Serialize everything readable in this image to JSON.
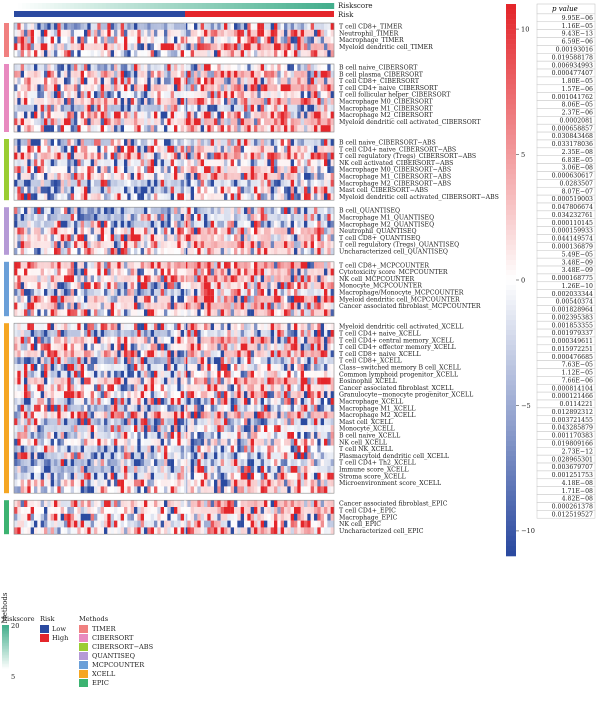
{
  "chart_data": {
    "type": "heatmap",
    "top_annotations": [
      "Riskscore",
      "Risk"
    ],
    "pvalue_header": "p value",
    "colorbar": {
      "ticks": [
        "10",
        "5",
        "0",
        "−5",
        "−10"
      ],
      "values": [
        10,
        5,
        0,
        -5,
        -10
      ],
      "range": [
        -11,
        11
      ]
    },
    "groups": [
      {
        "method": "TIMER",
        "color": "#f08080",
        "rows": [
          {
            "name": "T cell CD8+_TIMER",
            "p": "9.95E−06"
          },
          {
            "name": "Neutrophil_TIMER",
            "p": "1.16E−05"
          },
          {
            "name": "Macrophage_TIMER",
            "p": "9.43E−13"
          },
          {
            "name": "Myeloid dendritic cell_TIMER",
            "p": "6.59E−06"
          },
          {
            "name": "",
            "p": "0.00193016"
          }
        ]
      },
      {
        "method": "CIBERSORT",
        "color": "#e88ac0",
        "rows": [
          {
            "name": "B cell naive_CIBERSORT",
            "p": "0.019588178"
          },
          {
            "name": "B cell plasma_CIBERSORT",
            "p": "0.006934993"
          },
          {
            "name": "T cell CD8+_CIBERSORT",
            "p": "0.000477407"
          },
          {
            "name": "T cell CD4+ naive_CIBERSORT",
            "p": "1.80E−05"
          },
          {
            "name": "T cell follicular helper_CIBERSORT",
            "p": "1.57E−06"
          },
          {
            "name": "Macrophage M0_CIBERSORT",
            "p": "0.001041762"
          },
          {
            "name": "Macrophage M1_CIBERSORT",
            "p": "8.06E−05"
          },
          {
            "name": "Macrophage M2_CIBERSORT",
            "p": "2.37E−06"
          },
          {
            "name": "Myeloid dendritic cell activated_CIBERSORT",
            "p": "0.0002081"
          },
          {
            "name": "",
            "p": "0.000658857"
          }
        ]
      },
      {
        "method": "CIBERSORT−ABS",
        "color": "#9acd32",
        "rows": [
          {
            "name": "B cell naive_CIBERSORT−ABS",
            "p": "0.030843468"
          },
          {
            "name": "T cell CD4+ naive_CIBERSORT−ABS",
            "p": "0.033178036"
          },
          {
            "name": "T cell regulatory (Tregs)_CIBERSORT−ABS",
            "p": "2.35E−08"
          },
          {
            "name": "NK cell activated_CIBERSORT−ABS",
            "p": "6.83E−05"
          },
          {
            "name": "Macrophage M0_CIBERSORT−ABS",
            "p": "3.06E−08"
          },
          {
            "name": "Macrophage M1_CIBERSORT−ABS",
            "p": "0.000630617"
          },
          {
            "name": "Macrophage M2_CIBERSORT−ABS",
            "p": "0.0283507"
          },
          {
            "name": "Mast cell_CIBERSORT−ABS",
            "p": "8.07E−07"
          },
          {
            "name": "Myeloid dendritic cell activated_CIBERSORT−ABS",
            "p": "0.000519003"
          }
        ]
      },
      {
        "method": "QUANTISEQ",
        "color": "#b59ad6",
        "rows": [
          {
            "name": "B cell_QUANTISEQ",
            "p": "0.047806674"
          },
          {
            "name": "Macrophage M1_QUANTISEQ",
            "p": "0.034232761"
          },
          {
            "name": "Macrophage M2_QUANTISEQ",
            "p": "0.000110145"
          },
          {
            "name": "Neutrophil_QUANTISEQ",
            "p": "0.000159933"
          },
          {
            "name": "T cell CD8+_QUANTISEQ",
            "p": "0.044149574"
          },
          {
            "name": "T cell regulatory (Tregs)_QUANTISEQ",
            "p": "0.000136879"
          },
          {
            "name": "Uncharacterized cell_QUANTISEQ",
            "p": "5.49E−05"
          }
        ]
      },
      {
        "method": "MCPCOUNTER",
        "color": "#6a9fd8",
        "rows": [
          {
            "name": "T cell CD8+_MCPCOUNTER",
            "p": "3.48E−09"
          },
          {
            "name": "Cytotoxicity score_MCPCOUNTER",
            "p": "3.48E−09"
          },
          {
            "name": "NK cell_MCPCOUNTER",
            "p": "0.000168775"
          },
          {
            "name": "Monocyte_MCPCOUNTER",
            "p": "1.26E−10"
          },
          {
            "name": "Macrophage/Monocyte_MCPCOUNTER",
            "p": "0.002033344"
          },
          {
            "name": "Myeloid dendritic cell_MCPCOUNTER",
            "p": "0.00540374"
          },
          {
            "name": "Cancer associated fibroblast_MCPCOUNTER",
            "p": "0.001828964"
          },
          {
            "name": "",
            "p": "0.002395383"
          }
        ]
      },
      {
        "method": "XCELL",
        "color": "#f5a623",
        "rows": [
          {
            "name": "Myeloid dendritic cell activated_XCELL",
            "p": "0.001853355"
          },
          {
            "name": "T cell CD4+ naive_XCELL",
            "p": "0.001979337"
          },
          {
            "name": "T cell CD4+ central memory_XCELL",
            "p": "0.000349611"
          },
          {
            "name": "T cell CD4+ effector memory_XCELL",
            "p": "0.015972251"
          },
          {
            "name": "T cell CD8+ naive_XCELL",
            "p": "0.000476685"
          },
          {
            "name": "T cell CD8+_XCELL",
            "p": "7.63E−05"
          },
          {
            "name": "Class−switched memory B cell_XCELL",
            "p": "1.12E−05"
          },
          {
            "name": "Common lymphoid progenitor_XCELL",
            "p": "7.66E−06"
          },
          {
            "name": "Eosinophil_XCELL",
            "p": "0.000814104"
          },
          {
            "name": "Cancer associated fibroblast_XCELL",
            "p": "0.000121466"
          },
          {
            "name": "Granulocyte−monocyte progenitor_XCELL",
            "p": "0.0114221"
          },
          {
            "name": "Macrophage_XCELL",
            "p": "0.012892312"
          },
          {
            "name": "Macrophage M1_XCELL",
            "p": "0.003721455"
          },
          {
            "name": "Macrophage M2_XCELL",
            "p": "0.043285879"
          },
          {
            "name": "Mast cell_XCELL",
            "p": "0.001170383"
          },
          {
            "name": "Monocyte_XCELL",
            "p": "0.019809166"
          },
          {
            "name": "B cell naive_XCELL",
            "p": "2.73E−12"
          },
          {
            "name": "NK cell_XCELL",
            "p": "0.028965301"
          },
          {
            "name": "T cell NK_XCELL",
            "p": "0.003679707"
          },
          {
            "name": "Plasmacytoid dendritic cell_XCELL",
            "p": "0.001251753"
          },
          {
            "name": "T cell CD4+ Th2_XCELL",
            "p": "4.18E−08"
          },
          {
            "name": "Immune score_XCELL",
            "p": "1.71E−08"
          },
          {
            "name": "Stroma score_XCELL",
            "p": "4.82E−08"
          },
          {
            "name": "Microenvironment score_XCELL",
            "p": "0.000261378"
          },
          {
            "name": "",
            "p": "0.012519527"
          }
        ]
      },
      {
        "method": "EPIC",
        "color": "#3cb371",
        "rows": [
          {
            "name": "Cancer associated fibroblast_EPIC",
            "p": ""
          },
          {
            "name": "T cell CD4+_EPIC",
            "p": ""
          },
          {
            "name": "Macrophage_EPIC",
            "p": ""
          },
          {
            "name": "NK cell_EPIC",
            "p": ""
          },
          {
            "name": "Uncharacterized cell_EPIC",
            "p": ""
          }
        ]
      }
    ],
    "side_axis_label": "Methods",
    "legends": {
      "riskscore": {
        "title": "Riskscore",
        "ticks": [
          "20",
          "5"
        ],
        "values": [
          20,
          5
        ]
      },
      "risk": {
        "title": "Risk",
        "items": [
          {
            "label": "Low",
            "color": "#2b4aa0"
          },
          {
            "label": "High",
            "color": "#e4262b"
          }
        ]
      },
      "methods": {
        "title": "Methods",
        "items": [
          {
            "label": "TIMER",
            "color": "#f08080"
          },
          {
            "label": "CIBERSORT",
            "color": "#e88ac0"
          },
          {
            "label": "CIBERSORT−ABS",
            "color": "#9acd32"
          },
          {
            "label": "QUANTISEQ",
            "color": "#b59ad6"
          },
          {
            "label": "MCPCOUNTER",
            "color": "#6a9fd8"
          },
          {
            "label": "XCELL",
            "color": "#f5a623"
          },
          {
            "label": "EPIC",
            "color": "#3cb371"
          }
        ]
      }
    }
  }
}
